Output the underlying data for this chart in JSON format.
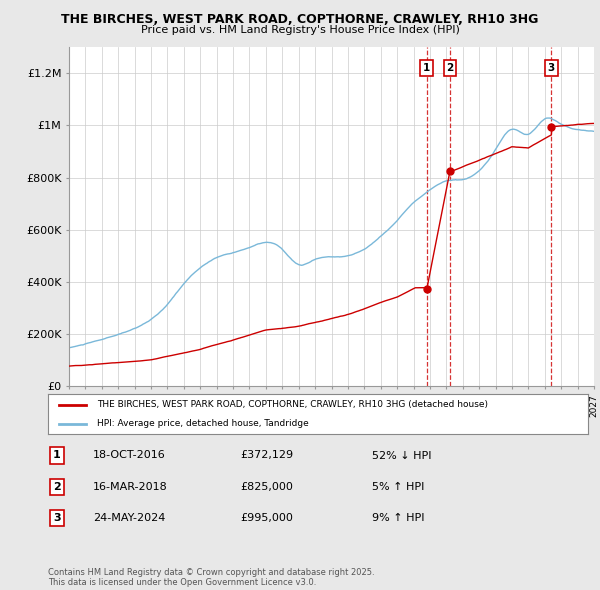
{
  "title": "THE BIRCHES, WEST PARK ROAD, COPTHORNE, CRAWLEY, RH10 3HG",
  "subtitle": "Price paid vs. HM Land Registry's House Price Index (HPI)",
  "ylabel_ticks": [
    "£0",
    "£200K",
    "£400K",
    "£600K",
    "£800K",
    "£1M",
    "£1.2M"
  ],
  "ytick_values": [
    0,
    200000,
    400000,
    600000,
    800000,
    1000000,
    1200000
  ],
  "ylim": [
    0,
    1300000
  ],
  "hpi_color": "#7ab8d9",
  "price_color": "#cc0000",
  "sale_year_nums": [
    2016.8,
    2018.21,
    2024.4
  ],
  "sale_prices": [
    372129,
    825000,
    995000
  ],
  "sale_labels": [
    "1",
    "2",
    "3"
  ],
  "sale_info": [
    {
      "num": "1",
      "date": "18-OCT-2016",
      "price": "£372,129",
      "pct": "52% ↓ HPI"
    },
    {
      "num": "2",
      "date": "16-MAR-2018",
      "price": "£825,000",
      "pct": "5% ↑ HPI"
    },
    {
      "num": "3",
      "date": "24-MAY-2024",
      "price": "£995,000",
      "pct": "9% ↑ HPI"
    }
  ],
  "legend_line1": "THE BIRCHES, WEST PARK ROAD, COPTHORNE, CRAWLEY, RH10 3HG (detached house)",
  "legend_line2": "HPI: Average price, detached house, Tandridge",
  "footnote": "Contains HM Land Registry data © Crown copyright and database right 2025.\nThis data is licensed under the Open Government Licence v3.0.",
  "background_color": "#e8e8e8",
  "plot_background": "#ffffff",
  "grid_color": "#cccccc",
  "xstart": 1995,
  "xend": 2027
}
